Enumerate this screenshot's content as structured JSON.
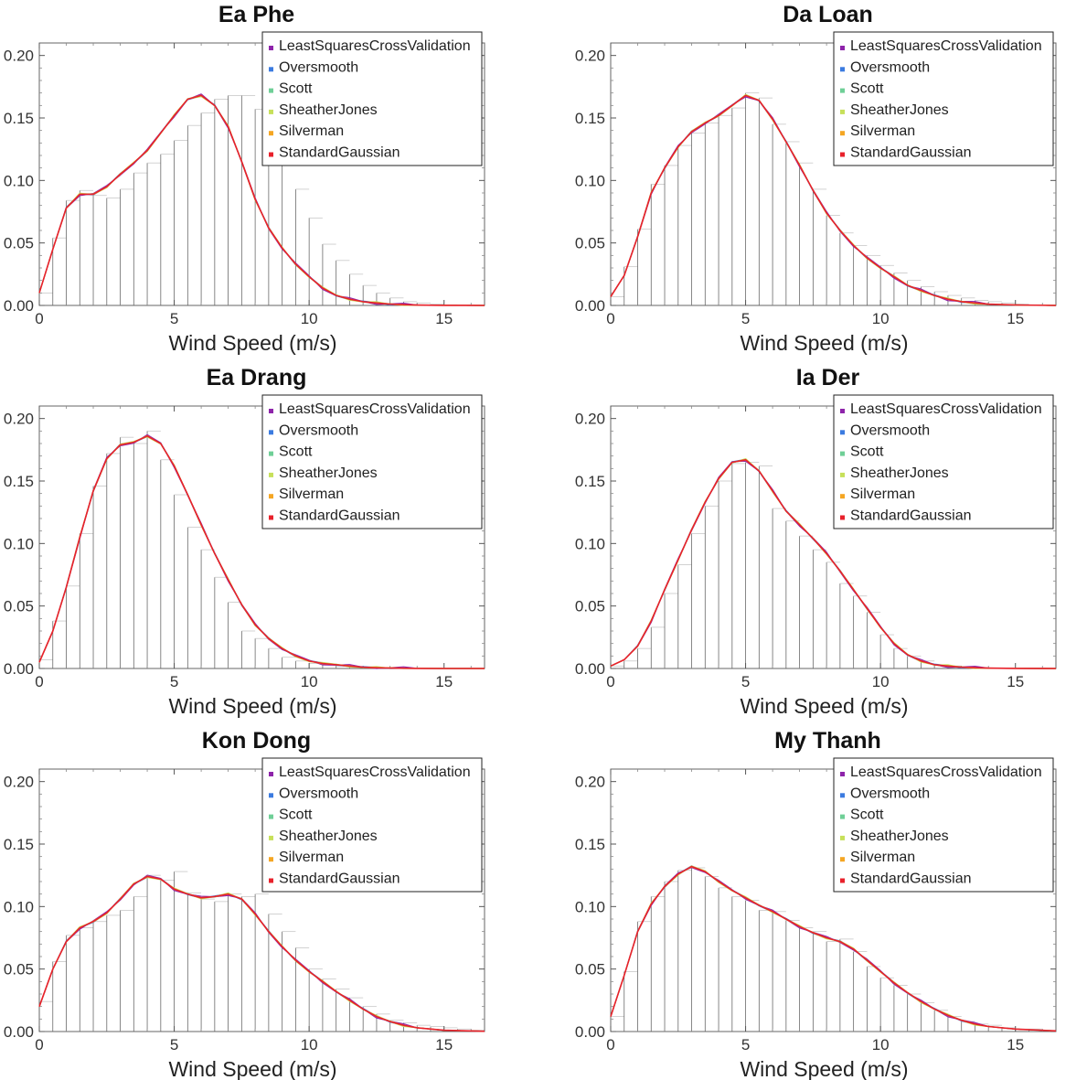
{
  "figure": {
    "legend_entries": [
      {
        "name": "LeastSquaresCrossValidation",
        "color": "#8e24aa"
      },
      {
        "name": "Oversmooth",
        "color": "#3b7be0"
      },
      {
        "name": "Scott",
        "color": "#6fcf97"
      },
      {
        "name": "SheatherJones",
        "color": "#c7e05a"
      },
      {
        "name": "Silverman",
        "color": "#f5a623"
      },
      {
        "name": "StandardGaussian",
        "color": "#e8212b"
      }
    ]
  },
  "chart_data": [
    {
      "type": "bar",
      "title": "Ea Phe",
      "xlabel": "Wind Speed (m/s)",
      "ylabel": "",
      "xlim": [
        0,
        16.5
      ],
      "ylim": [
        0,
        0.21
      ],
      "xticks": [
        0,
        5,
        10,
        15
      ],
      "xtick_labels": [
        "0",
        "5",
        "10",
        "15"
      ],
      "yticks": [
        0,
        0.05,
        0.1,
        0.15,
        0.2
      ],
      "ytick_labels": [
        "0.00",
        "0.05",
        "0.10",
        "0.15",
        "0.20"
      ],
      "legend_position": "top-right",
      "histogram": {
        "bin_start": 0,
        "bin_width": 0.5,
        "values": [
          0.01,
          0.054,
          0.084,
          0.092,
          0.088,
          0.086,
          0.093,
          0.106,
          0.114,
          0.121,
          0.132,
          0.144,
          0.154,
          0.165,
          0.168,
          0.168,
          0.157,
          0.143,
          0.121,
          0.093,
          0.07,
          0.049,
          0.036,
          0.025,
          0.016,
          0.01,
          0.006,
          0.003,
          0.002,
          0.001,
          0.0005,
          0.0003,
          0.0002
        ]
      },
      "density": {
        "x": [
          0,
          0.5,
          1,
          1.5,
          2,
          2.5,
          3,
          3.5,
          4,
          4.5,
          5,
          5.5,
          6,
          6.5,
          7,
          7.5,
          8,
          8.5,
          9,
          9.5,
          10,
          10.5,
          11,
          11.5,
          12,
          12.5,
          13,
          13.5,
          14,
          15,
          16.5
        ],
        "y": [
          0.01,
          0.045,
          0.078,
          0.089,
          0.089,
          0.095,
          0.105,
          0.114,
          0.124,
          0.138,
          0.152,
          0.165,
          0.168,
          0.16,
          0.143,
          0.115,
          0.085,
          0.062,
          0.046,
          0.033,
          0.023,
          0.014,
          0.008,
          0.005,
          0.003,
          0.002,
          0.001,
          0.0006,
          0.0003,
          0.0001,
          0.0
        ]
      }
    },
    {
      "type": "bar",
      "title": "Da Loan",
      "xlabel": "Wind Speed (m/s)",
      "ylabel": "",
      "xlim": [
        0,
        16.5
      ],
      "ylim": [
        0,
        0.21
      ],
      "xticks": [
        0,
        5,
        10,
        15
      ],
      "xtick_labels": [
        "0",
        "5",
        "10",
        "15"
      ],
      "yticks": [
        0,
        0.05,
        0.1,
        0.15,
        0.2
      ],
      "ytick_labels": [
        "0.00",
        "0.05",
        "0.10",
        "0.15",
        "0.20"
      ],
      "legend_position": "top-right",
      "histogram": {
        "bin_start": 0,
        "bin_width": 0.5,
        "values": [
          0.007,
          0.031,
          0.061,
          0.097,
          0.112,
          0.128,
          0.138,
          0.146,
          0.152,
          0.158,
          0.17,
          0.166,
          0.145,
          0.131,
          0.114,
          0.093,
          0.072,
          0.058,
          0.048,
          0.04,
          0.032,
          0.026,
          0.02,
          0.015,
          0.011,
          0.008,
          0.006,
          0.004,
          0.003,
          0.002,
          0.001,
          0.0005,
          0.0003
        ]
      },
      "density": {
        "x": [
          0,
          0.5,
          1,
          1.5,
          2,
          2.5,
          3,
          3.5,
          4,
          4.5,
          5,
          5.5,
          6,
          6.5,
          7,
          7.5,
          8,
          8.5,
          9,
          9.5,
          10,
          10.5,
          11,
          11.5,
          12,
          12.5,
          13,
          13.5,
          14,
          15,
          16.5
        ],
        "y": [
          0.007,
          0.024,
          0.055,
          0.09,
          0.11,
          0.127,
          0.139,
          0.146,
          0.152,
          0.16,
          0.168,
          0.164,
          0.149,
          0.131,
          0.112,
          0.092,
          0.074,
          0.06,
          0.048,
          0.038,
          0.03,
          0.023,
          0.016,
          0.012,
          0.008,
          0.005,
          0.003,
          0.002,
          0.001,
          0.0004,
          0.0
        ]
      }
    },
    {
      "type": "bar",
      "title": "Ea Drang",
      "xlabel": "Wind Speed (m/s)",
      "ylabel": "",
      "xlim": [
        0,
        16.5
      ],
      "ylim": [
        0,
        0.21
      ],
      "xticks": [
        0,
        5,
        10,
        15
      ],
      "xtick_labels": [
        "0",
        "5",
        "10",
        "15"
      ],
      "yticks": [
        0,
        0.05,
        0.1,
        0.15,
        0.2
      ],
      "ytick_labels": [
        "0.00",
        "0.05",
        "0.10",
        "0.15",
        "0.20"
      ],
      "legend_position": "top-right",
      "histogram": {
        "bin_start": 0,
        "bin_width": 0.5,
        "values": [
          0.007,
          0.038,
          0.066,
          0.108,
          0.146,
          0.172,
          0.185,
          0.18,
          0.19,
          0.167,
          0.139,
          0.113,
          0.095,
          0.073,
          0.053,
          0.03,
          0.024,
          0.016,
          0.009,
          0.006,
          0.004,
          0.003,
          0.002,
          0.001,
          0.0007,
          0.0004,
          0.0003,
          0.0002,
          0.0001,
          0.0001,
          0.0,
          0.0,
          0.0
        ]
      },
      "density": {
        "x": [
          0,
          0.5,
          1,
          1.5,
          2,
          2.5,
          3,
          3.5,
          4,
          4.5,
          5,
          5.5,
          6,
          6.5,
          7,
          7.5,
          8,
          8.5,
          9,
          9.5,
          10,
          10.5,
          11,
          11.5,
          12,
          12.5,
          13,
          13.5,
          14,
          15,
          16.5
        ],
        "y": [
          0.005,
          0.03,
          0.065,
          0.105,
          0.142,
          0.168,
          0.179,
          0.181,
          0.186,
          0.18,
          0.162,
          0.139,
          0.115,
          0.092,
          0.071,
          0.051,
          0.035,
          0.024,
          0.016,
          0.01,
          0.006,
          0.004,
          0.003,
          0.002,
          0.001,
          0.0006,
          0.0003,
          0.0002,
          0.0001,
          0.0,
          0.0
        ]
      }
    },
    {
      "type": "bar",
      "title": "Ia Der",
      "xlabel": "Wind Speed (m/s)",
      "ylabel": "",
      "xlim": [
        0,
        16.5
      ],
      "ylim": [
        0,
        0.21
      ],
      "xticks": [
        0,
        5,
        10,
        15
      ],
      "xtick_labels": [
        "0",
        "5",
        "10",
        "15"
      ],
      "yticks": [
        0,
        0.05,
        0.1,
        0.15,
        0.2
      ],
      "ytick_labels": [
        "0.00",
        "0.05",
        "0.10",
        "0.15",
        "0.20"
      ],
      "legend_position": "top-right",
      "histogram": {
        "bin_start": 0,
        "bin_width": 0.5,
        "values": [
          0.002,
          0.006,
          0.016,
          0.033,
          0.06,
          0.083,
          0.108,
          0.13,
          0.15,
          0.164,
          0.165,
          0.162,
          0.128,
          0.118,
          0.106,
          0.095,
          0.085,
          0.068,
          0.058,
          0.045,
          0.027,
          0.016,
          0.01,
          0.006,
          0.003,
          0.002,
          0.001,
          0.0005,
          0.0003,
          0.0002,
          0.0001,
          0.0,
          0.0
        ]
      },
      "density": {
        "x": [
          0,
          0.5,
          1,
          1.5,
          2,
          2.5,
          3,
          3.5,
          4,
          4.5,
          5,
          5.5,
          6,
          6.5,
          7,
          7.5,
          8,
          8.5,
          9,
          9.5,
          10,
          10.5,
          11,
          11.5,
          12,
          12.5,
          13,
          13.5,
          14,
          15,
          16.5
        ],
        "y": [
          0.002,
          0.007,
          0.018,
          0.038,
          0.063,
          0.087,
          0.111,
          0.133,
          0.152,
          0.165,
          0.167,
          0.158,
          0.142,
          0.126,
          0.115,
          0.104,
          0.092,
          0.078,
          0.063,
          0.048,
          0.033,
          0.02,
          0.011,
          0.006,
          0.003,
          0.002,
          0.001,
          0.0006,
          0.0003,
          0.0001,
          0.0
        ]
      }
    },
    {
      "type": "bar",
      "title": "Kon Dong",
      "xlabel": "Wind Speed (m/s)",
      "ylabel": "",
      "xlim": [
        0,
        16.5
      ],
      "ylim": [
        0,
        0.21
      ],
      "xticks": [
        0,
        5,
        10,
        15
      ],
      "xtick_labels": [
        "0",
        "5",
        "10",
        "15"
      ],
      "yticks": [
        0,
        0.05,
        0.1,
        0.15,
        0.2
      ],
      "ytick_labels": [
        "0.00",
        "0.05",
        "0.10",
        "0.15",
        "0.20"
      ],
      "legend_position": "top-right",
      "histogram": {
        "bin_start": 0,
        "bin_width": 0.5,
        "values": [
          0.024,
          0.056,
          0.077,
          0.083,
          0.088,
          0.093,
          0.097,
          0.108,
          0.125,
          0.121,
          0.128,
          0.111,
          0.106,
          0.104,
          0.11,
          0.108,
          0.11,
          0.094,
          0.08,
          0.067,
          0.05,
          0.042,
          0.034,
          0.027,
          0.02,
          0.014,
          0.009,
          0.007,
          0.005,
          0.004,
          0.003,
          0.002,
          0.001
        ]
      },
      "density": {
        "x": [
          0,
          0.5,
          1,
          1.5,
          2,
          2.5,
          3,
          3.5,
          4,
          4.5,
          5,
          5.5,
          6,
          6.5,
          7,
          7.5,
          8,
          8.5,
          9,
          9.5,
          10,
          10.5,
          11,
          11.5,
          12,
          12.5,
          13,
          13.5,
          14,
          15,
          16.5
        ],
        "y": [
          0.02,
          0.05,
          0.072,
          0.083,
          0.088,
          0.095,
          0.106,
          0.118,
          0.124,
          0.122,
          0.114,
          0.11,
          0.107,
          0.108,
          0.11,
          0.106,
          0.094,
          0.08,
          0.068,
          0.057,
          0.048,
          0.04,
          0.032,
          0.025,
          0.018,
          0.012,
          0.008,
          0.005,
          0.003,
          0.001,
          0.0002
        ]
      }
    },
    {
      "type": "bar",
      "title": "My Thanh",
      "xlabel": "Wind Speed (m/s)",
      "ylabel": "",
      "xlim": [
        0,
        16.5
      ],
      "ylim": [
        0,
        0.21
      ],
      "xticks": [
        0,
        5,
        10,
        15
      ],
      "xtick_labels": [
        "0",
        "5",
        "10",
        "15"
      ],
      "yticks": [
        0,
        0.05,
        0.1,
        0.15,
        0.2
      ],
      "ytick_labels": [
        "0.00",
        "0.05",
        "0.10",
        "0.15",
        "0.20"
      ],
      "legend_position": "top-right",
      "histogram": {
        "bin_start": 0,
        "bin_width": 0.5,
        "values": [
          0.012,
          0.048,
          0.088,
          0.108,
          0.12,
          0.129,
          0.131,
          0.124,
          0.115,
          0.108,
          0.105,
          0.097,
          0.096,
          0.089,
          0.083,
          0.08,
          0.072,
          0.074,
          0.064,
          0.052,
          0.043,
          0.037,
          0.03,
          0.023,
          0.017,
          0.012,
          0.008,
          0.006,
          0.005,
          0.003,
          0.002,
          0.002,
          0.001
        ]
      },
      "density": {
        "x": [
          0,
          0.5,
          1,
          1.5,
          2,
          2.5,
          3,
          3.5,
          4,
          4.5,
          5,
          5.5,
          6,
          6.5,
          7,
          7.5,
          8,
          8.5,
          9,
          9.5,
          10,
          10.5,
          11,
          11.5,
          12,
          12.5,
          13,
          13.5,
          14,
          15,
          16.5
        ],
        "y": [
          0.012,
          0.045,
          0.08,
          0.102,
          0.116,
          0.126,
          0.132,
          0.128,
          0.12,
          0.113,
          0.107,
          0.101,
          0.096,
          0.09,
          0.084,
          0.079,
          0.075,
          0.072,
          0.066,
          0.057,
          0.048,
          0.039,
          0.031,
          0.024,
          0.018,
          0.013,
          0.009,
          0.006,
          0.004,
          0.002,
          0.0005
        ]
      }
    }
  ]
}
